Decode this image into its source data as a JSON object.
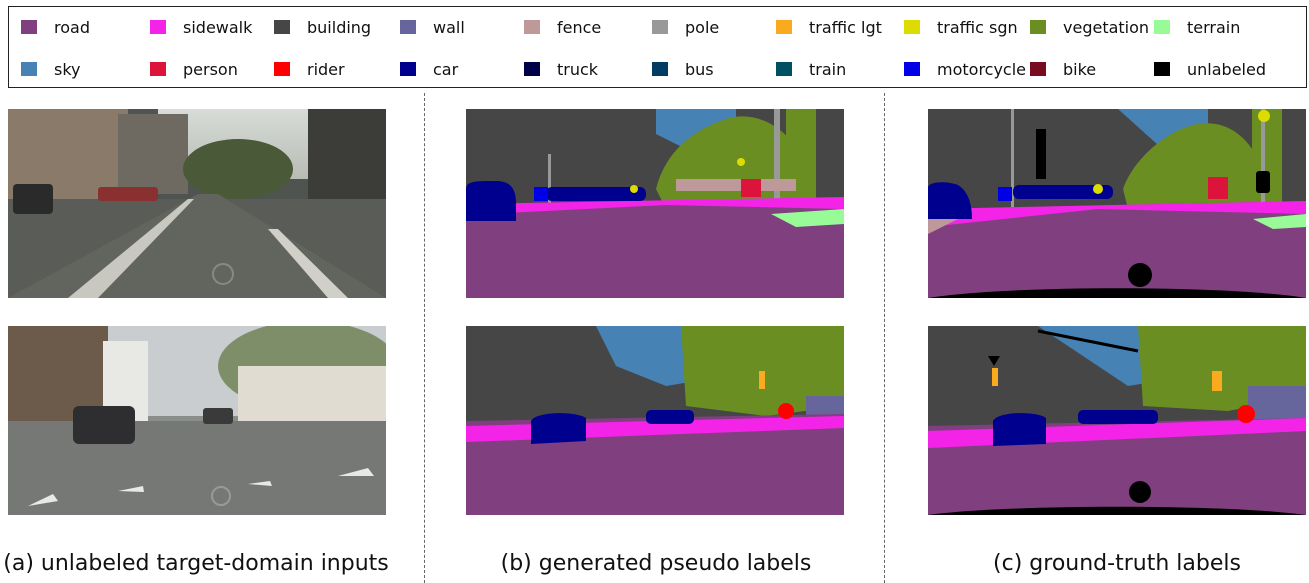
{
  "legend": {
    "items": [
      {
        "label": "road",
        "color": "#804080"
      },
      {
        "label": "sidewalk",
        "color": "#f423e8"
      },
      {
        "label": "building",
        "color": "#464646"
      },
      {
        "label": "wall",
        "color": "#66669c"
      },
      {
        "label": "fence",
        "color": "#be9999"
      },
      {
        "label": "pole",
        "color": "#999999"
      },
      {
        "label": "traffic lgt",
        "color": "#faaa1e"
      },
      {
        "label": "traffic sgn",
        "color": "#dcdc00"
      },
      {
        "label": "vegetation",
        "color": "#6b8e23"
      },
      {
        "label": "terrain",
        "color": "#98fb98"
      },
      {
        "label": "sky",
        "color": "#4682b4"
      },
      {
        "label": "person",
        "color": "#dc143c"
      },
      {
        "label": "rider",
        "color": "#ff0000"
      },
      {
        "label": "car",
        "color": "#00008e"
      },
      {
        "label": "truck",
        "color": "#000046"
      },
      {
        "label": "bus",
        "color": "#003c64"
      },
      {
        "label": "train",
        "color": "#005064"
      },
      {
        "label": "motorcycle",
        "color": "#0000e6"
      },
      {
        "label": "bike",
        "color": "#770b20"
      },
      {
        "label": "unlabeled",
        "color": "#000000"
      }
    ]
  },
  "captions": {
    "a": "(a) unlabeled target-domain inputs",
    "b": "(b) generated pseudo labels",
    "c": "(c) ground-truth labels"
  }
}
